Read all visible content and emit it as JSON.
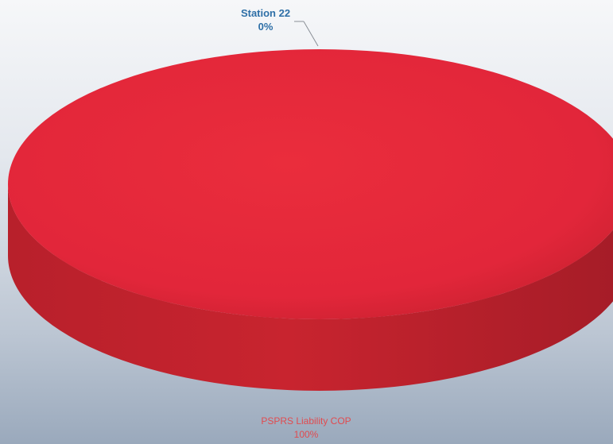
{
  "chart_data": {
    "type": "pie",
    "style": "3d",
    "title": "",
    "slices": [
      {
        "label": "Station 22",
        "percent_label": "0%",
        "value": 0,
        "color": "#2e6fa7"
      },
      {
        "label": "PSPRS Liability COP",
        "percent_label": "100%",
        "value": 100,
        "color": "#e8283a"
      }
    ]
  }
}
